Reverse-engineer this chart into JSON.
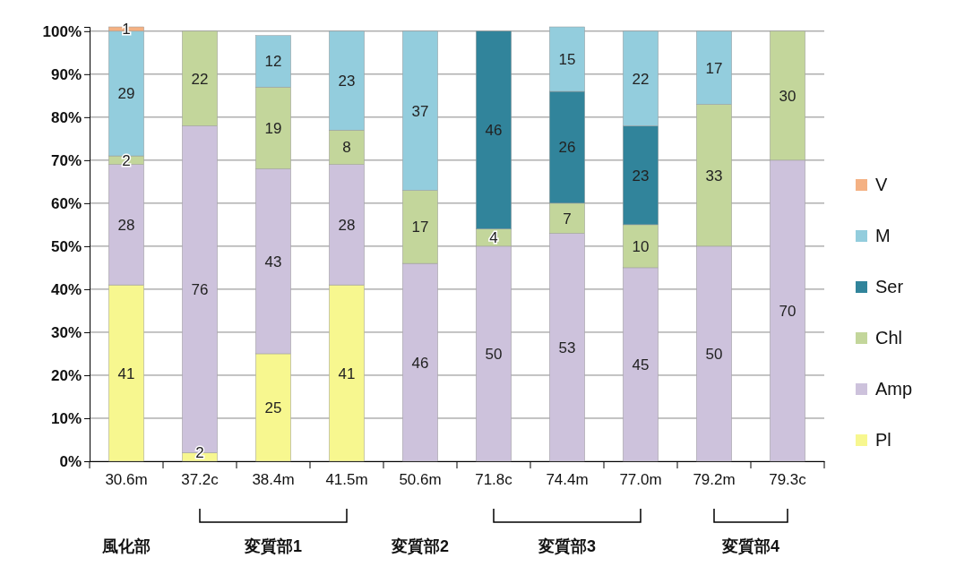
{
  "chart_data": {
    "type": "bar",
    "stacked": true,
    "data_labels": true,
    "grid": "y",
    "legend": "right",
    "categories": [
      "30.6m",
      "37.2c",
      "38.4m",
      "41.5m",
      "50.6m",
      "71.8c",
      "74.4m",
      "77.0m",
      "79.2m",
      "79.3c"
    ],
    "ylim": [
      0,
      101
    ],
    "yticks": [
      {
        "value": 0,
        "label": "0%"
      },
      {
        "value": 10,
        "label": "10%"
      },
      {
        "value": 20,
        "label": "20%"
      },
      {
        "value": 30,
        "label": "30%"
      },
      {
        "value": 40,
        "label": "40%"
      },
      {
        "value": 50,
        "label": "50%"
      },
      {
        "value": 60,
        "label": "60%"
      },
      {
        "value": 70,
        "label": "70%"
      },
      {
        "value": 80,
        "label": "80%"
      },
      {
        "value": 90,
        "label": "90%"
      },
      {
        "value": 100,
        "label": "100%"
      }
    ],
    "series": [
      {
        "name": "Pl",
        "color": "#f7f78f",
        "values": [
          41,
          2,
          25,
          41,
          null,
          null,
          null,
          null,
          null,
          null
        ]
      },
      {
        "name": "Amp",
        "color": "#cdc2dc",
        "values": [
          28,
          76,
          43,
          28,
          46,
          50,
          53,
          45,
          50,
          70
        ]
      },
      {
        "name": "Chl",
        "color": "#c3d69b",
        "values": [
          2,
          22,
          19,
          8,
          17,
          4,
          7,
          10,
          33,
          30
        ]
      },
      {
        "name": "Ser",
        "color": "#31849b",
        "values": [
          null,
          null,
          null,
          null,
          null,
          46,
          26,
          23,
          null,
          null
        ]
      },
      {
        "name": "M",
        "color": "#93cddd",
        "values": [
          29,
          null,
          12,
          23,
          37,
          null,
          15,
          22,
          17,
          null
        ]
      },
      {
        "name": "V",
        "color": "#f4b183",
        "values": [
          1,
          null,
          null,
          null,
          null,
          null,
          null,
          null,
          null,
          null
        ]
      }
    ],
    "annotations": [
      "風化部",
      "変質部1",
      "変質部2",
      "変質部3",
      "変質部4"
    ]
  }
}
